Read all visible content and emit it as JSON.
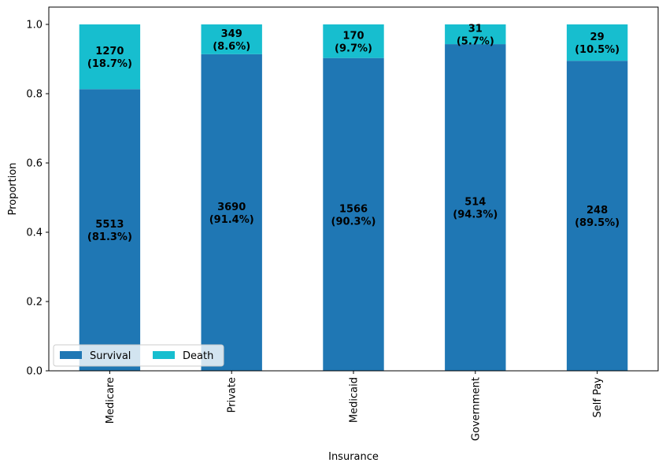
{
  "chart_data": {
    "type": "bar",
    "stacked": true,
    "title": "",
    "xlabel": "Insurance",
    "ylabel": "Proportion",
    "ylim": [
      0,
      1.05
    ],
    "yticks": [
      "0.0",
      "0.2",
      "0.4",
      "0.6",
      "0.8",
      "1.0"
    ],
    "ytick_values": [
      0,
      0.2,
      0.4,
      0.6,
      0.8,
      1.0
    ],
    "categories": [
      "Medicare",
      "Private",
      "Medicaid",
      "Government",
      "Self Pay"
    ],
    "series": [
      {
        "name": "Survival",
        "color": "#1f77b4",
        "values": [
          0.813,
          0.914,
          0.903,
          0.943,
          0.895
        ],
        "counts": [
          "5513",
          "3690",
          "1566",
          "514",
          "248"
        ],
        "percent_labels": [
          "(81.3%)",
          "(91.4%)",
          "(90.3%)",
          "(94.3%)",
          "(89.5%)"
        ]
      },
      {
        "name": "Death",
        "color": "#17becf",
        "values": [
          0.187,
          0.086,
          0.097,
          0.057,
          0.105
        ],
        "counts": [
          "1270",
          "349",
          "170",
          "31",
          "29"
        ],
        "percent_labels": [
          "(18.7%)",
          "(8.6%)",
          "(9.7%)",
          "(5.7%)",
          "(10.5%)"
        ]
      }
    ],
    "legend_position": "lower-left",
    "grid": false
  }
}
